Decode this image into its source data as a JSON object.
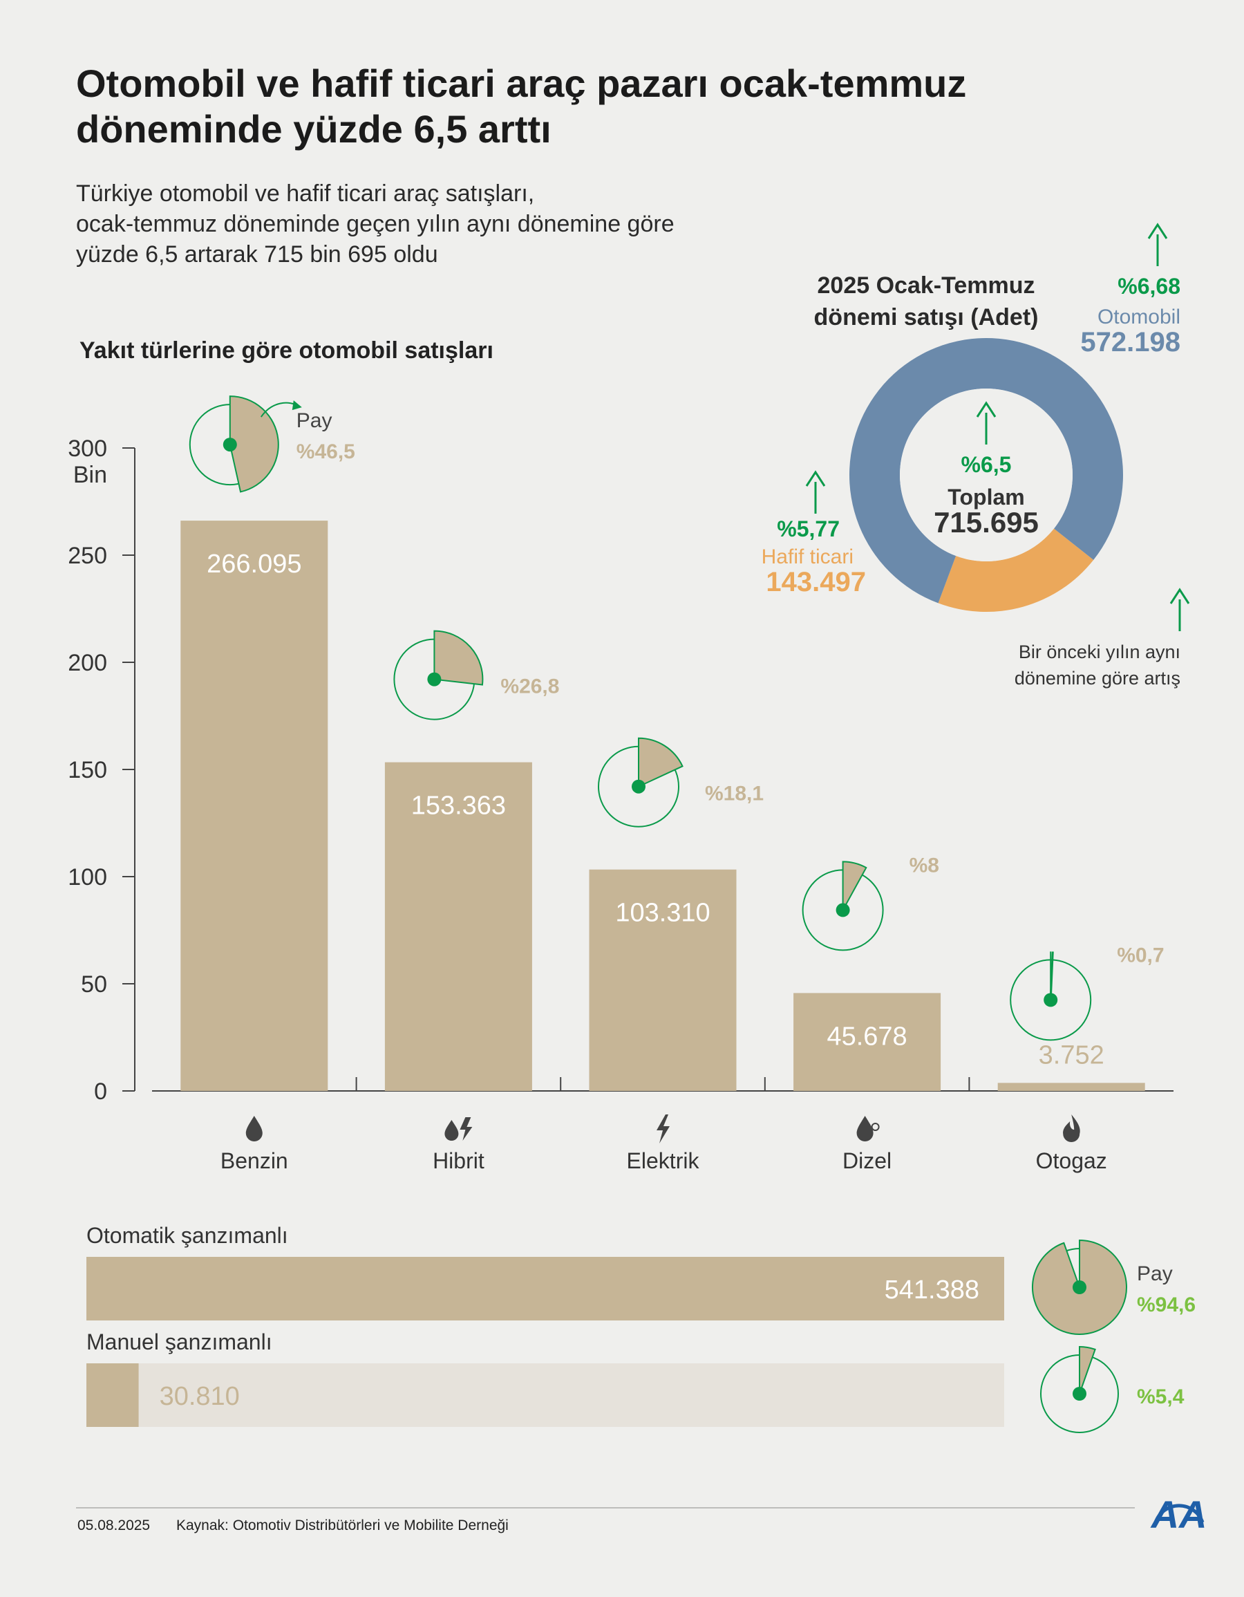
{
  "title": "Otomobil ve hafif ticari araç pazarı ocak-temmuz\ndöneminde yüzde 6,5 arttı",
  "subtitle": "Türkiye otomobil ve hafif ticari araç satışları,\nocak-temmuz döneminde geçen yılın aynı dönemine göre\nyüzde 6,5 artarak 715 bin 695 oldu",
  "colors": {
    "bar": "#c6b596",
    "green": "#0a9a4a",
    "lime": "#7cc142",
    "blue": "#6b8aab",
    "orange": "#eba85b",
    "manual_track": "#e6e2db"
  },
  "fuel_chart": {
    "heading": "Yakıt türlerine göre otomobil satışları",
    "share_label": "Pay",
    "fuel_icons": [
      "drop-icon",
      "hybrid-icon",
      "lightning-icon",
      "diesel-drop-icon",
      "flame-icon"
    ]
  },
  "chart_data": [
    {
      "type": "bar",
      "title": "Yakıt türlerine göre otomobil satışları",
      "ylabel": "Bin",
      "ylim": [
        0,
        300
      ],
      "yticks": [
        0,
        50,
        100,
        150,
        200,
        250,
        300
      ],
      "ytick_labels": [
        "0",
        "50",
        "100",
        "150",
        "200",
        "250",
        "300"
      ],
      "categories": [
        "Benzin",
        "Hibrit",
        "Elektrik",
        "Dizel",
        "Otogaz"
      ],
      "values": [
        266.095,
        153.363,
        103.31,
        45.678,
        3.752
      ],
      "value_labels": [
        "266.095",
        "153.363",
        "103.310",
        "45.678",
        "3.752"
      ],
      "share_percent": [
        46.5,
        26.8,
        18.1,
        8,
        0.7
      ],
      "share_labels": [
        "%46,5",
        "%26,8",
        "%18,1",
        "%8",
        "%0,7"
      ]
    },
    {
      "type": "pie",
      "title": "2025 Ocak-Temmuz\ndönemi satışı (Adet)",
      "slices": [
        {
          "name": "Otomobil",
          "value": 572198,
          "value_label": "572.198",
          "change_label": "%6,68",
          "color": "#6b8aab"
        },
        {
          "name": "Hafif ticari",
          "value": 143497,
          "value_label": "143.497",
          "change_label": "%5,77",
          "color": "#eba85b"
        }
      ],
      "center_label": "Toplam",
      "center_value": "715.695",
      "center_change": "%6,5",
      "legend_note": "Bir önceki yılın aynı\ndönemine göre artış"
    },
    {
      "type": "bar",
      "orientation": "horizontal",
      "categories": [
        "Otomatik şanzımanlı",
        "Manuel şanzımanlı"
      ],
      "values": [
        541388,
        30810
      ],
      "value_labels": [
        "541.388",
        "30.810"
      ],
      "share_percent": [
        94.6,
        5.4
      ],
      "share_labels": [
        "%94,6",
        "%5,4"
      ],
      "share_label": "Pay"
    }
  ],
  "footer": {
    "date": "05.08.2025",
    "source": "Kaynak: Otomotiv Distribütörleri ve Mobilite Derneği"
  },
  "logo": {
    "text": "AA",
    "icon": "aa-logo-icon"
  }
}
